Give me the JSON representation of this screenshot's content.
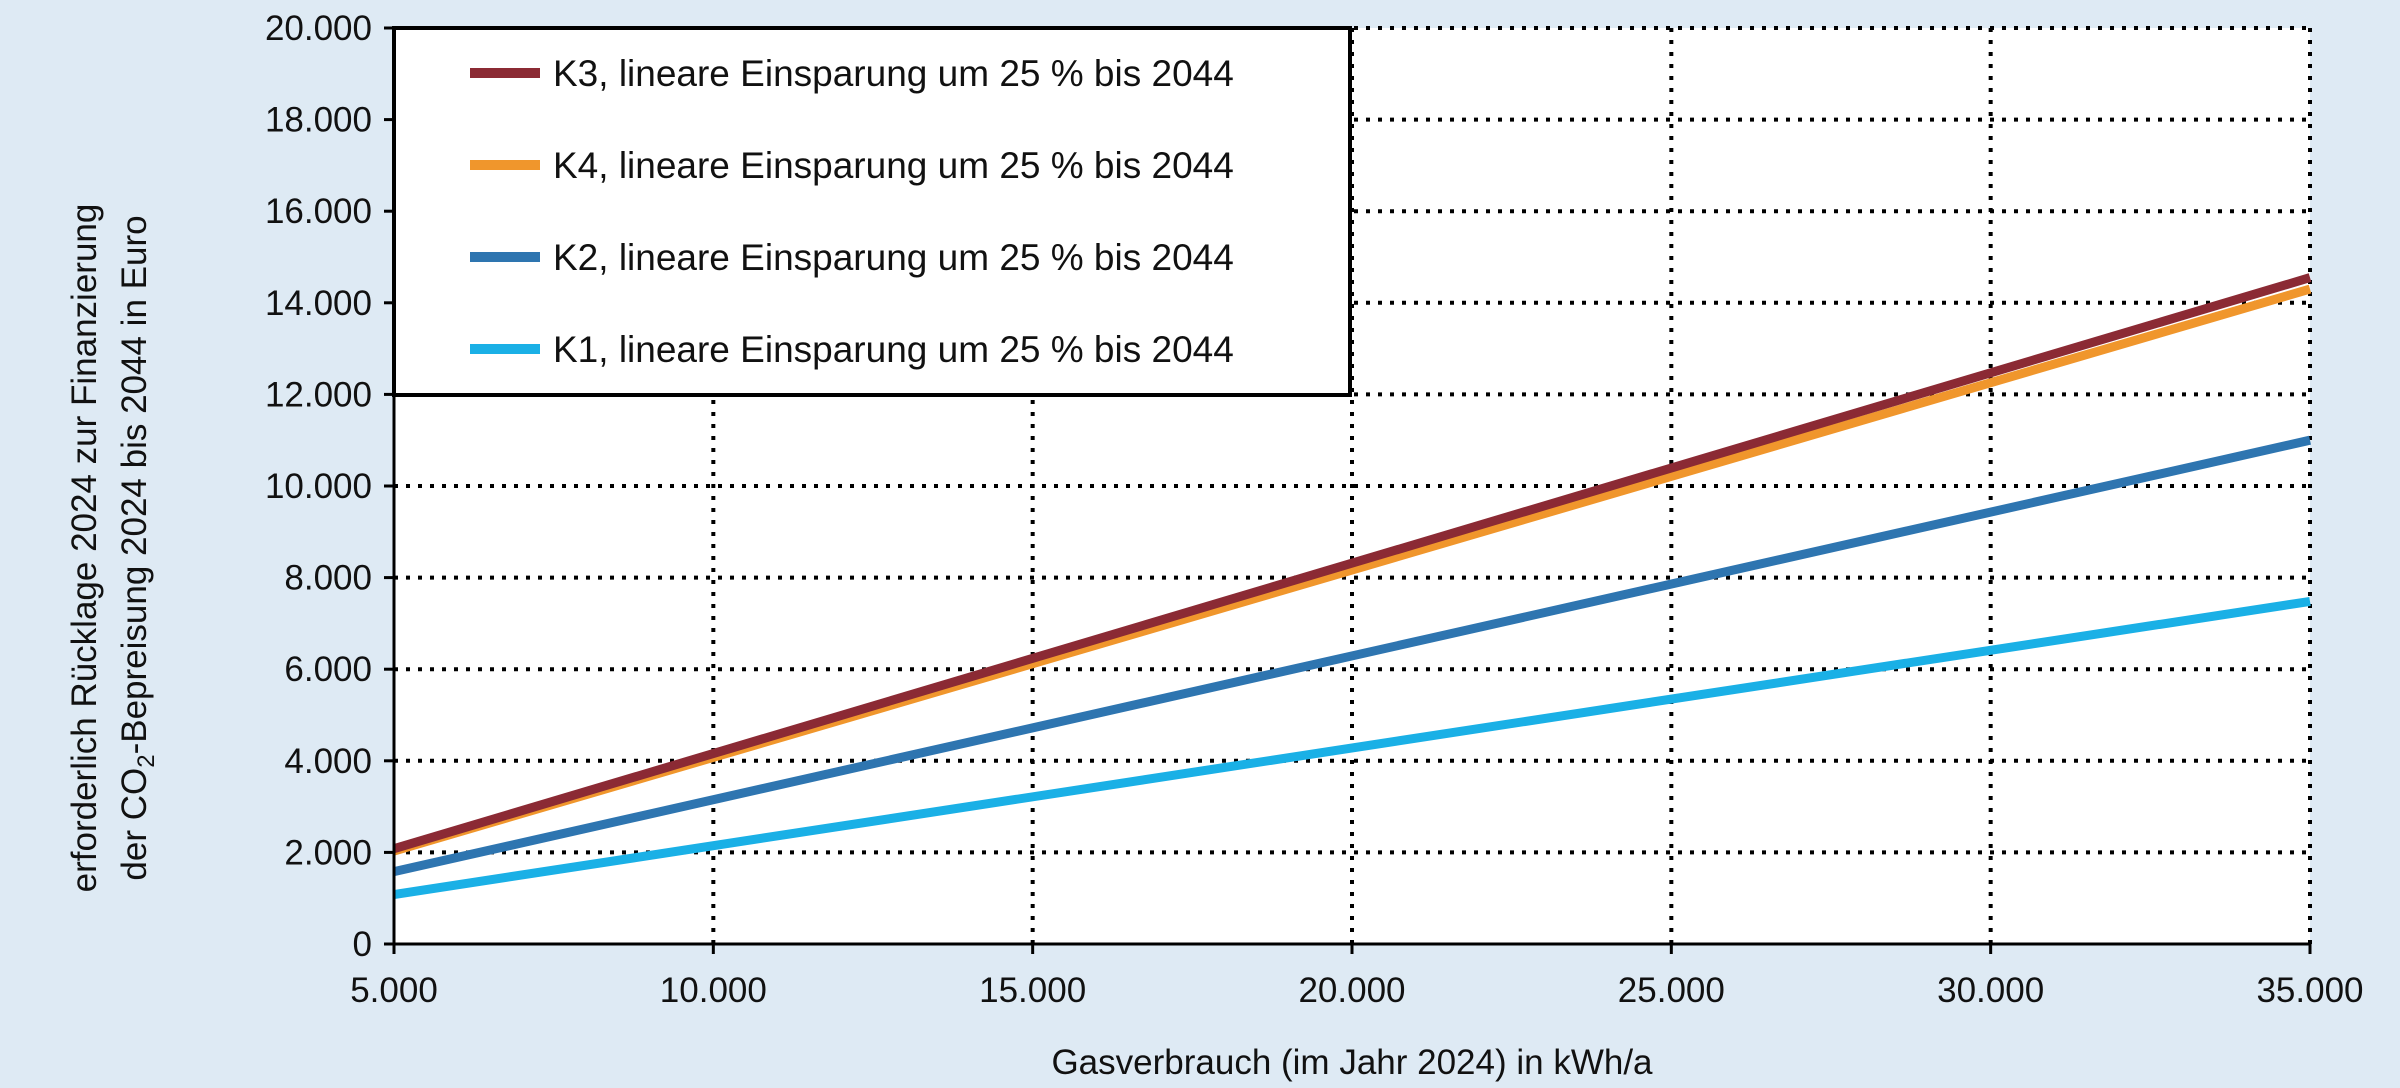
{
  "chart_data": {
    "type": "line",
    "xlabel": "Gasverbrauch (im Jahr 2024) in kWh/a",
    "ylabel_line1": "erforderlich Rücklage 2024 zur Finanzierung",
    "ylabel_line2_pre": "der CO",
    "ylabel_line2_sub": "2",
    "ylabel_line2_post": "-Bepreisung 2024 bis 2044 in Euro",
    "xlim": [
      5000,
      35000
    ],
    "ylim": [
      0,
      20000
    ],
    "x_ticks": [
      5000,
      10000,
      15000,
      20000,
      25000,
      30000,
      35000
    ],
    "x_tick_labels": [
      "5.000",
      "10.000",
      "15.000",
      "20.000",
      "25.000",
      "30.000",
      "35.000"
    ],
    "y_ticks": [
      0,
      2000,
      4000,
      6000,
      8000,
      10000,
      12000,
      14000,
      16000,
      18000,
      20000
    ],
    "y_tick_labels": [
      "0",
      "2.000",
      "4.000",
      "6.000",
      "8.000",
      "10.000",
      "12.000",
      "14.000",
      "16.000",
      "18.000",
      "20.000"
    ],
    "grid": true,
    "grid_style": "dotted",
    "legend_position": "top-left",
    "series": [
      {
        "name": "K3, lineare Einsparung um 25 % bis 2044",
        "color": "#8b2a34",
        "x": [
          5000,
          35000
        ],
        "y": [
          2080,
          14550
        ]
      },
      {
        "name": "K4, lineare Einsparung um 25 % bis 2044",
        "color": "#f0962c",
        "x": [
          5000,
          35000
        ],
        "y": [
          2030,
          14300
        ]
      },
      {
        "name": "K2, lineare Einsparung um 25 % bis 2044",
        "color": "#2e75b0",
        "x": [
          5000,
          35000
        ],
        "y": [
          1580,
          11000
        ]
      },
      {
        "name": "K1, lineare Einsparung um 25 % bis 2044",
        "color": "#1ab0e6",
        "x": [
          5000,
          35000
        ],
        "y": [
          1080,
          7480
        ]
      }
    ]
  }
}
